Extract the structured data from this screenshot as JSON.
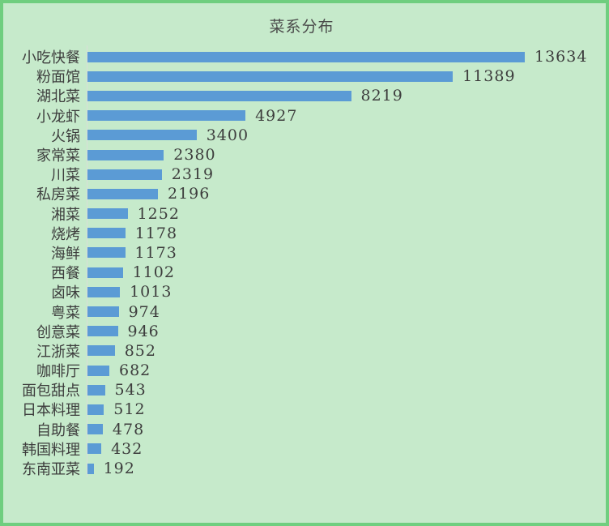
{
  "title": "菜系分布",
  "colors": {
    "background": "#C6EACB",
    "border": "#6FCE7F",
    "bar": "#5B9BD5",
    "text": "#3D3D3D",
    "title_text": "#4A4A4A",
    "axis_line": "#D9DED9"
  },
  "chart_data": {
    "type": "bar",
    "orientation": "horizontal",
    "title": "菜系分布",
    "xlabel": "",
    "ylabel": "",
    "value_labels": true,
    "sort_order": "descending",
    "xlim": [
      0,
      14000
    ],
    "grid": false,
    "legend": false,
    "categories": [
      "小吃快餐",
      "粉面馆",
      "湖北菜",
      "小龙虾",
      "火锅",
      "家常菜",
      "川菜",
      "私房菜",
      "湘菜",
      "烧烤",
      "海鲜",
      "西餐",
      "卤味",
      "粤菜",
      "创意菜",
      "江浙菜",
      "咖啡厅",
      "面包甜点",
      "日本料理",
      "自助餐",
      "韩国料理",
      "东南亚菜"
    ],
    "values": [
      13634,
      11389,
      8219,
      4927,
      3400,
      2380,
      2319,
      2196,
      1252,
      1178,
      1173,
      1102,
      1013,
      974,
      946,
      852,
      682,
      543,
      512,
      478,
      432,
      192
    ]
  }
}
